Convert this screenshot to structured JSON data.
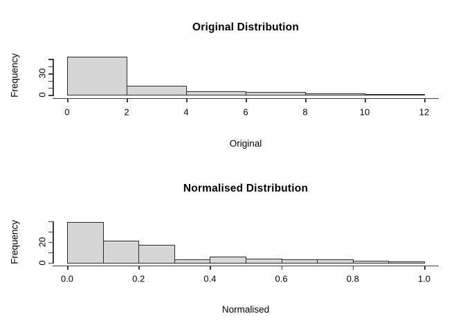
{
  "colors": {
    "background": "#ffffff",
    "bar_fill": "#d6d6d6",
    "bar_border": "#2a2a2a",
    "axis": "#3c3c3c",
    "text": "#000000"
  },
  "chart_data": [
    {
      "type": "histogram",
      "title": "Original Distribution",
      "xlabel": "Original",
      "ylabel": "Frequency",
      "bins": {
        "start": 0,
        "width": 2
      },
      "counts": [
        53,
        13,
        5,
        4,
        2,
        1
      ],
      "xlim": [
        0,
        12
      ],
      "ylim": [
        0,
        50
      ],
      "grid": false,
      "x_ticks": [
        {
          "value": 0,
          "label": "0"
        },
        {
          "value": 2,
          "label": "2"
        },
        {
          "value": 4,
          "label": "4"
        },
        {
          "value": 6,
          "label": "6"
        },
        {
          "value": 8,
          "label": "8"
        },
        {
          "value": 10,
          "label": "10"
        },
        {
          "value": 12,
          "label": "12"
        }
      ],
      "y_ticks": [
        {
          "value": 0,
          "label": "0"
        },
        {
          "value": 10,
          "label": ""
        },
        {
          "value": 20,
          "label": ""
        },
        {
          "value": 30,
          "label": "30"
        },
        {
          "value": 40,
          "label": ""
        },
        {
          "value": 50,
          "label": ""
        }
      ]
    },
    {
      "type": "histogram",
      "title": "Normalised Distribution",
      "xlabel": "Normalised",
      "ylabel": "Frequency",
      "bins": {
        "start": 0,
        "width": 0.1
      },
      "counts": [
        39,
        21,
        17,
        3,
        6,
        4,
        3,
        3,
        2,
        1
      ],
      "xlim": [
        0,
        1
      ],
      "ylim": [
        0,
        40
      ],
      "grid": false,
      "x_ticks": [
        {
          "value": 0,
          "label": "0.0"
        },
        {
          "value": 0.2,
          "label": "0.2"
        },
        {
          "value": 0.4,
          "label": "0.4"
        },
        {
          "value": 0.6,
          "label": "0.6"
        },
        {
          "value": 0.8,
          "label": "0.8"
        },
        {
          "value": 1.0,
          "label": "1.0"
        }
      ],
      "y_ticks": [
        {
          "value": 0,
          "label": "0"
        },
        {
          "value": 10,
          "label": ""
        },
        {
          "value": 20,
          "label": "20"
        },
        {
          "value": 30,
          "label": ""
        },
        {
          "value": 40,
          "label": ""
        }
      ]
    }
  ]
}
